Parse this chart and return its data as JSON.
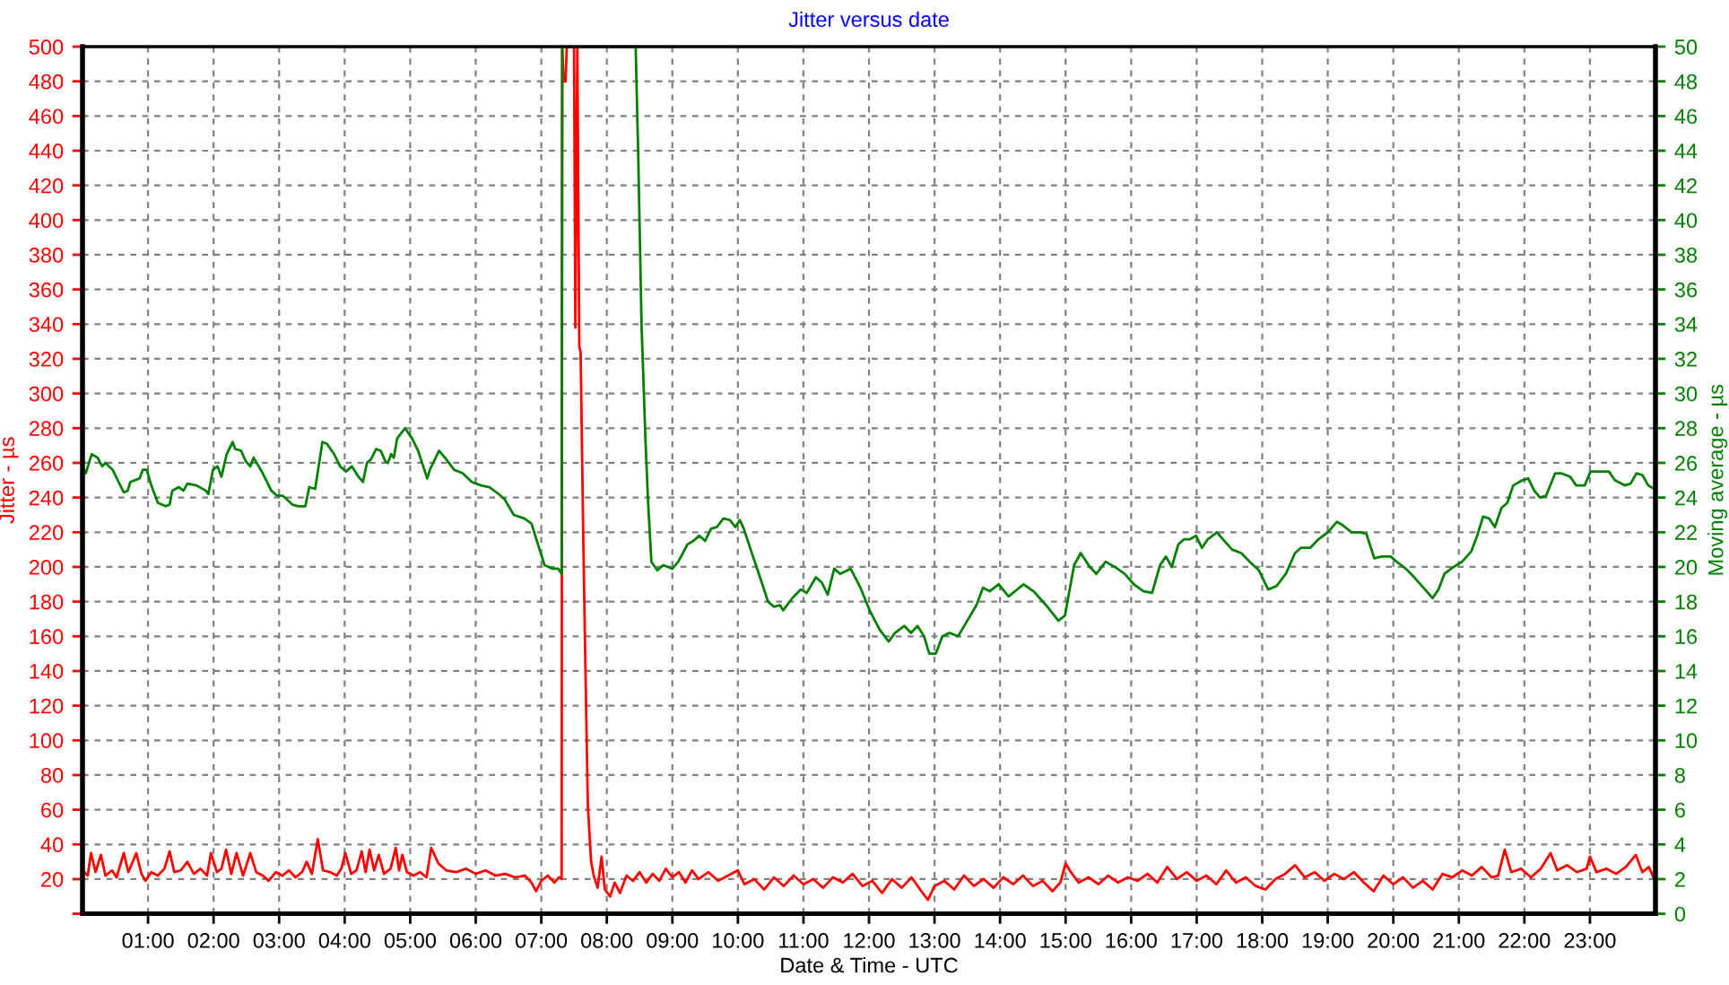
{
  "chart_data": {
    "type": "line",
    "title": "Jitter versus date",
    "xlabel": "Date & Time - UTC",
    "ylabel": "Jitter - µs",
    "y2label": "Moving average - µs",
    "xlim": [
      0,
      24
    ],
    "xticks": [
      {
        "value": 1,
        "label": "01:00"
      },
      {
        "value": 2,
        "label": "02:00"
      },
      {
        "value": 3,
        "label": "03:00"
      },
      {
        "value": 4,
        "label": "04:00"
      },
      {
        "value": 5,
        "label": "05:00"
      },
      {
        "value": 6,
        "label": "06:00"
      },
      {
        "value": 7,
        "label": "07:00"
      },
      {
        "value": 8,
        "label": "08:00"
      },
      {
        "value": 9,
        "label": "09:00"
      },
      {
        "value": 10,
        "label": "10:00"
      },
      {
        "value": 11,
        "label": "11:00"
      },
      {
        "value": 12,
        "label": "12:00"
      },
      {
        "value": 13,
        "label": "13:00"
      },
      {
        "value": 14,
        "label": "14:00"
      },
      {
        "value": 15,
        "label": "15:00"
      },
      {
        "value": 16,
        "label": "16:00"
      },
      {
        "value": 17,
        "label": "17:00"
      },
      {
        "value": 18,
        "label": "18:00"
      },
      {
        "value": 19,
        "label": "19:00"
      },
      {
        "value": 20,
        "label": "20:00"
      },
      {
        "value": 21,
        "label": "21:00"
      },
      {
        "value": 22,
        "label": "22:00"
      },
      {
        "value": 23,
        "label": "23:00"
      }
    ],
    "ylim": [
      0,
      500
    ],
    "yticks": [
      {
        "value": 0,
        "label": null
      },
      20,
      40,
      60,
      80,
      100,
      120,
      140,
      160,
      180,
      200,
      220,
      240,
      260,
      280,
      300,
      320,
      340,
      360,
      380,
      400,
      420,
      440,
      460,
      480,
      500
    ],
    "y2lim": [
      0,
      50
    ],
    "y2ticks": [
      0,
      2,
      4,
      6,
      8,
      10,
      12,
      14,
      16,
      18,
      20,
      22,
      24,
      26,
      28,
      30,
      32,
      34,
      36,
      38,
      40,
      42,
      44,
      46,
      48,
      50
    ],
    "grid": true,
    "series": [
      {
        "color": "#ff0000",
        "x": [
          0.0,
          0.08,
          0.13,
          0.2,
          0.28,
          0.35,
          0.45,
          0.52,
          0.63,
          0.7,
          0.82,
          0.9,
          0.96,
          1.05,
          1.15,
          1.25,
          1.33,
          1.4,
          1.5,
          1.6,
          1.7,
          1.8,
          1.9,
          1.96,
          2.05,
          2.12,
          2.19,
          2.27,
          2.35,
          2.45,
          2.56,
          2.65,
          2.75,
          2.84,
          2.95,
          3.05,
          3.15,
          3.25,
          3.35,
          3.42,
          3.5,
          3.59,
          3.67,
          3.78,
          3.88,
          3.95,
          4.01,
          4.1,
          4.18,
          4.26,
          4.32,
          4.38,
          4.45,
          4.52,
          4.6,
          4.7,
          4.78,
          4.83,
          4.88,
          4.95,
          5.05,
          5.15,
          5.25,
          5.32,
          5.43,
          5.55,
          5.7,
          5.85,
          6.0,
          6.15,
          6.3,
          6.45,
          6.6,
          6.75,
          6.85,
          6.92,
          7.0,
          7.1,
          7.2,
          7.27,
          7.31,
          7.32,
          7.34,
          7.37,
          7.39,
          7.5,
          7.52,
          7.55,
          7.58,
          7.6,
          7.64,
          7.67,
          7.71,
          7.76,
          7.8,
          7.86,
          7.92,
          7.97,
          8.05,
          8.12,
          8.2,
          8.3,
          8.4,
          8.5,
          8.6,
          8.7,
          8.8,
          8.9,
          9.0,
          9.1,
          9.2,
          9.3,
          9.4,
          9.55,
          9.7,
          9.85,
          10.0,
          10.1,
          10.25,
          10.4,
          10.55,
          10.7,
          10.85,
          11.0,
          11.15,
          11.3,
          11.45,
          11.6,
          11.75,
          11.9,
          12.05,
          12.2,
          12.35,
          12.5,
          12.65,
          12.8,
          12.9,
          13.0,
          13.15,
          13.3,
          13.45,
          13.6,
          13.75,
          13.9,
          14.05,
          14.2,
          14.35,
          14.5,
          14.65,
          14.8,
          14.92,
          15.0,
          15.08,
          15.2,
          15.35,
          15.5,
          15.65,
          15.8,
          15.95,
          16.1,
          16.25,
          16.4,
          16.55,
          16.7,
          16.85,
          17.0,
          17.15,
          17.3,
          17.45,
          17.6,
          17.75,
          17.9,
          18.05,
          18.2,
          18.35,
          18.5,
          18.65,
          18.8,
          18.95,
          19.1,
          19.25,
          19.4,
          19.55,
          19.7,
          19.85,
          20.0,
          20.15,
          20.3,
          20.45,
          20.6,
          20.75,
          20.9,
          21.05,
          21.2,
          21.35,
          21.5,
          21.6,
          21.7,
          21.8,
          21.95,
          22.1,
          22.25,
          22.4,
          22.5,
          22.65,
          22.8,
          22.95,
          23.0,
          23.1,
          23.25,
          23.4,
          23.55,
          23.7,
          23.8,
          23.9,
          23.98
        ],
        "values": [
          25,
          22,
          35,
          24,
          34,
          22,
          25,
          21,
          35,
          24,
          35,
          23,
          19,
          24,
          22,
          26,
          36,
          24,
          25,
          30,
          23,
          26,
          22,
          35,
          24,
          26,
          37,
          23,
          35,
          22,
          35,
          24,
          22,
          19,
          24,
          22,
          25,
          21,
          24,
          30,
          23,
          43,
          25,
          24,
          22,
          26,
          35,
          23,
          25,
          36,
          24,
          37,
          25,
          34,
          23,
          26,
          38,
          25,
          34,
          24,
          22,
          24,
          21,
          38,
          29,
          25,
          24,
          26,
          23,
          25,
          22,
          23,
          21,
          22,
          18,
          13,
          19,
          22,
          18,
          21,
          20,
          500,
          480,
          480,
          500,
          500,
          338,
          500,
          327,
          324,
          219,
          150,
          63,
          30,
          22,
          15,
          33,
          14,
          10,
          18,
          12,
          22,
          19,
          24,
          18,
          23,
          19,
          26,
          21,
          24,
          18,
          25,
          20,
          24,
          19,
          22,
          25,
          17,
          20,
          14,
          21,
          16,
          22,
          17,
          20,
          15,
          21,
          18,
          23,
          16,
          19,
          12,
          20,
          15,
          21,
          13,
          8,
          16,
          19,
          14,
          22,
          16,
          20,
          15,
          21,
          17,
          22,
          16,
          19,
          13,
          18,
          29,
          24,
          18,
          21,
          17,
          22,
          18,
          21,
          19,
          23,
          18,
          27,
          20,
          24,
          19,
          22,
          17,
          25,
          18,
          21,
          16,
          14,
          20,
          23,
          28,
          21,
          24,
          19,
          23,
          20,
          24,
          18,
          13,
          22,
          17,
          21,
          15,
          19,
          14,
          23,
          21,
          25,
          22,
          27,
          21,
          22,
          37,
          24,
          26,
          21,
          26,
          35,
          25,
          28,
          24,
          26,
          33,
          24,
          26,
          23,
          27,
          34,
          24,
          27,
          20
        ]
      },
      {
        "color": "#008000",
        "axis": "y2",
        "x": [
          0.0,
          0.05,
          0.14,
          0.23,
          0.3,
          0.35,
          0.46,
          0.55,
          0.63,
          0.69,
          0.73,
          0.87,
          0.92,
          0.98,
          1.05,
          1.15,
          1.27,
          1.33,
          1.37,
          1.47,
          1.54,
          1.6,
          1.74,
          1.88,
          1.92,
          1.99,
          2.06,
          2.12,
          2.2,
          2.29,
          2.33,
          2.42,
          2.49,
          2.56,
          2.61,
          2.75,
          2.88,
          2.97,
          3.06,
          3.2,
          3.29,
          3.4,
          3.46,
          3.55,
          3.66,
          3.73,
          3.84,
          3.93,
          4.02,
          4.11,
          4.21,
          4.28,
          4.34,
          4.4,
          4.48,
          4.55,
          4.62,
          4.66,
          4.71,
          4.75,
          4.8,
          4.92,
          5.03,
          5.12,
          5.26,
          5.3,
          5.44,
          5.53,
          5.67,
          5.8,
          5.94,
          6.08,
          6.21,
          6.35,
          6.44,
          6.58,
          6.74,
          6.85,
          6.95,
          7.05,
          7.17,
          7.26,
          7.31,
          7.32,
          8.44,
          8.48,
          8.53,
          8.59,
          8.63,
          8.68,
          8.77,
          8.86,
          9.0,
          9.09,
          9.23,
          9.32,
          9.41,
          9.5,
          9.59,
          9.68,
          9.78,
          9.88,
          9.96,
          10.03,
          10.09,
          10.23,
          10.32,
          10.46,
          10.55,
          10.64,
          10.69,
          10.83,
          10.96,
          11.05,
          11.19,
          11.28,
          11.37,
          11.47,
          11.56,
          11.72,
          11.87,
          12.01,
          12.16,
          12.3,
          12.4,
          12.54,
          12.64,
          12.74,
          12.84,
          12.92,
          13.02,
          13.12,
          13.23,
          13.36,
          13.5,
          13.64,
          13.74,
          13.84,
          13.98,
          14.13,
          14.36,
          14.51,
          14.7,
          14.89,
          14.99,
          15.13,
          15.23,
          15.37,
          15.47,
          15.61,
          15.75,
          15.9,
          16.04,
          16.19,
          16.32,
          16.44,
          16.53,
          16.62,
          16.72,
          16.81,
          16.9,
          16.99,
          17.08,
          17.17,
          17.31,
          17.4,
          17.54,
          17.68,
          17.81,
          17.95,
          18.09,
          18.22,
          18.36,
          18.5,
          18.59,
          18.73,
          18.86,
          19.0,
          19.14,
          19.23,
          19.36,
          19.5,
          19.59,
          19.71,
          19.82,
          19.96,
          20.05,
          20.19,
          20.32,
          20.46,
          20.6,
          20.69,
          20.78,
          20.92,
          21.05,
          21.19,
          21.28,
          21.37,
          21.46,
          21.55,
          21.65,
          21.74,
          21.83,
          21.97,
          22.06,
          22.15,
          22.24,
          22.33,
          22.47,
          22.56,
          22.7,
          22.79,
          22.92,
          23.01,
          23.16,
          23.29,
          23.38,
          23.53,
          23.62,
          23.71,
          23.8,
          23.89,
          23.98
        ],
        "values": [
          25.8,
          25.4,
          26.5,
          26.3,
          25.8,
          26.0,
          25.6,
          24.9,
          24.3,
          24.4,
          24.9,
          25.1,
          25.6,
          25.6,
          24.7,
          23.7,
          23.5,
          23.6,
          24.4,
          24.6,
          24.4,
          24.8,
          24.7,
          24.4,
          24.2,
          25.6,
          25.8,
          25.2,
          26.5,
          27.2,
          26.8,
          26.7,
          26.1,
          25.8,
          26.3,
          25.4,
          24.4,
          24.1,
          24.1,
          23.6,
          23.5,
          23.5,
          24.6,
          24.5,
          27.2,
          27.1,
          26.5,
          25.8,
          25.5,
          25.8,
          25.2,
          24.9,
          26.0,
          26.2,
          26.8,
          26.7,
          26.1,
          26.0,
          26.5,
          26.3,
          27.4,
          28.0,
          27.4,
          26.7,
          25.1,
          25.6,
          26.7,
          26.3,
          25.6,
          25.4,
          24.9,
          24.7,
          24.6,
          24.2,
          23.9,
          23.0,
          22.8,
          22.5,
          21.3,
          20.1,
          19.9,
          19.9,
          19.6,
          50,
          50,
          43.6,
          33.9,
          27.3,
          23.7,
          20.3,
          19.8,
          20.1,
          19.9,
          20.3,
          21.3,
          21.5,
          21.8,
          21.5,
          22.2,
          22.3,
          22.8,
          22.7,
          22.3,
          22.7,
          22.2,
          20.6,
          19.6,
          18.0,
          17.7,
          17.8,
          17.5,
          18.2,
          18.7,
          18.5,
          19.4,
          19.1,
          18.4,
          19.9,
          19.6,
          19.9,
          18.8,
          17.5,
          16.4,
          15.7,
          16.2,
          16.6,
          16.2,
          16.6,
          16.0,
          15.0,
          15.0,
          16.0,
          16.2,
          16.0,
          16.9,
          17.8,
          18.8,
          18.6,
          19.0,
          18.3,
          19.0,
          18.6,
          17.8,
          16.9,
          17.2,
          20.1,
          20.8,
          20.0,
          19.6,
          20.3,
          20.0,
          19.6,
          19.0,
          18.6,
          18.5,
          20.1,
          20.6,
          20.0,
          21.3,
          21.6,
          21.6,
          21.8,
          21.1,
          21.6,
          22.0,
          21.6,
          21.0,
          20.8,
          20.3,
          19.8,
          18.7,
          18.9,
          19.6,
          20.8,
          21.1,
          21.1,
          21.6,
          22.0,
          22.6,
          22.4,
          22.0,
          22.0,
          21.9,
          20.5,
          20.6,
          20.6,
          20.3,
          19.9,
          19.4,
          18.8,
          18.2,
          18.7,
          19.6,
          20.0,
          20.3,
          20.9,
          21.8,
          22.9,
          22.8,
          22.3,
          23.4,
          23.7,
          24.7,
          25.0,
          25.1,
          24.4,
          24.0,
          24.1,
          25.4,
          25.4,
          25.2,
          24.7,
          24.7,
          25.5,
          25.5,
          25.5,
          25.0,
          24.7,
          24.8,
          25.4,
          25.3,
          24.7,
          24.5
        ]
      }
    ]
  }
}
